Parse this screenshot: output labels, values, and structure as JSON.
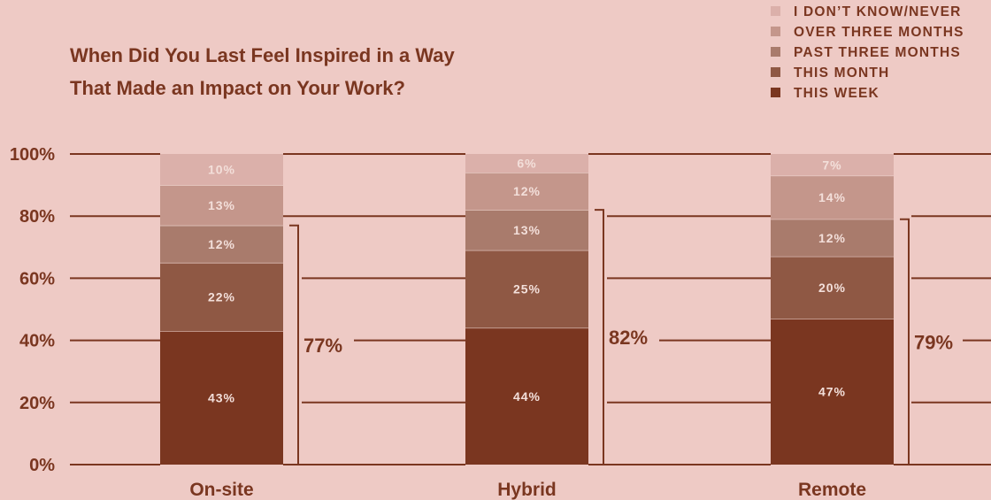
{
  "colors": {
    "background": "#eecac5",
    "text": "#7a3620",
    "line": "#7a3620",
    "series": [
      "#7a3620",
      "#8f5844",
      "#a97b6c",
      "#c4968b",
      "#dbb0aa"
    ],
    "label_light": "#f3dfda"
  },
  "chart_data": {
    "type": "bar",
    "stacked": true,
    "title_lines": [
      "When Did You Last Feel Inspired in a Way",
      "That Made an Impact on Your Work?"
    ],
    "categories": [
      "On-site",
      "Hybrid",
      "Remote"
    ],
    "series": [
      {
        "name": "THIS WEEK",
        "values": [
          43,
          44,
          47
        ]
      },
      {
        "name": "THIS MONTH",
        "values": [
          22,
          25,
          20
        ]
      },
      {
        "name": "PAST THREE MONTHS",
        "values": [
          12,
          13,
          12
        ]
      },
      {
        "name": "OVER THREE MONTHS",
        "values": [
          13,
          12,
          14
        ]
      },
      {
        "name": "I DON’T KNOW/NEVER",
        "values": [
          10,
          6,
          7
        ]
      }
    ],
    "segment_labels": [
      [
        "43%",
        "44%",
        "47%"
      ],
      [
        "22%",
        "25%",
        "20%"
      ],
      [
        "12%",
        "13%",
        "12%"
      ],
      [
        "13%",
        "12%",
        "14%"
      ],
      [
        "10%",
        "6%",
        "7%"
      ]
    ],
    "bracket_totals": [
      "77%",
      "82%",
      "79%"
    ],
    "bracket_spans": [
      [
        0,
        77
      ],
      [
        0,
        82
      ],
      [
        0,
        79
      ]
    ],
    "y_ticks": [
      "0%",
      "20%",
      "40%",
      "60%",
      "80%",
      "100%"
    ],
    "ylim": [
      0,
      100
    ],
    "legend_position": "top-right",
    "grid": true
  }
}
